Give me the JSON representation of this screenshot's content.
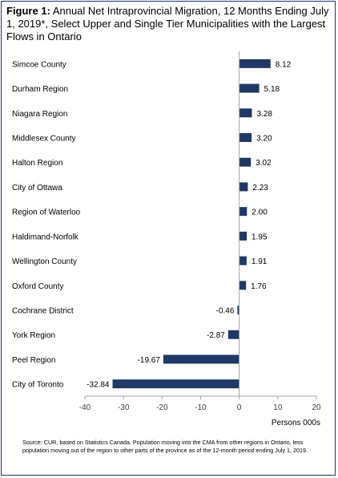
{
  "title_lead": "Figure 1:",
  "title_text": "Annual Net Intraprovincial  Migration, 12 Months Ending July 1, 2019*, Select Upper and Single Tier Municipalities with the Largest Flows in Ontario",
  "source": "Source:  CUR, based on Statistics Canada. Population  moving into the CMA from other regions in Ontario, less population  moving out of the region to other parts of the province  as of the 12-month  period ending July 1, 2019.",
  "colors": {
    "bar": "#1f3864",
    "axis": "#a6a6a6",
    "border": "#1f3864"
  },
  "chart_data": {
    "type": "bar",
    "orientation": "horizontal",
    "categories": [
      "Simcoe County",
      "Durham Region",
      "Niagara Region",
      "Middlesex County",
      "Halton Region",
      "City of Ottawa",
      "Region of Waterloo",
      "Haldimand-Norfolk",
      "Wellington County",
      "Oxford County",
      "Cochrane District",
      "York Region",
      "Peel Region",
      "City of Toronto"
    ],
    "values": [
      8.12,
      5.18,
      3.28,
      3.2,
      3.02,
      2.23,
      2.0,
      1.95,
      1.91,
      1.76,
      -0.46,
      -2.87,
      -19.67,
      -32.84
    ],
    "value_labels": [
      "8.12",
      "5.18",
      "3.28",
      "3.20",
      "3.02",
      "2.23",
      "2.00",
      "1.95",
      "1.91",
      "1.76",
      "-0.46",
      "-2.87",
      "-19.67",
      "-32.84"
    ],
    "xlim": [
      -40,
      20
    ],
    "xticks": [
      -40,
      -30,
      -20,
      -10,
      0,
      10,
      20
    ],
    "xlabel": "Persons 000s",
    "grid": false,
    "legend": "none"
  }
}
